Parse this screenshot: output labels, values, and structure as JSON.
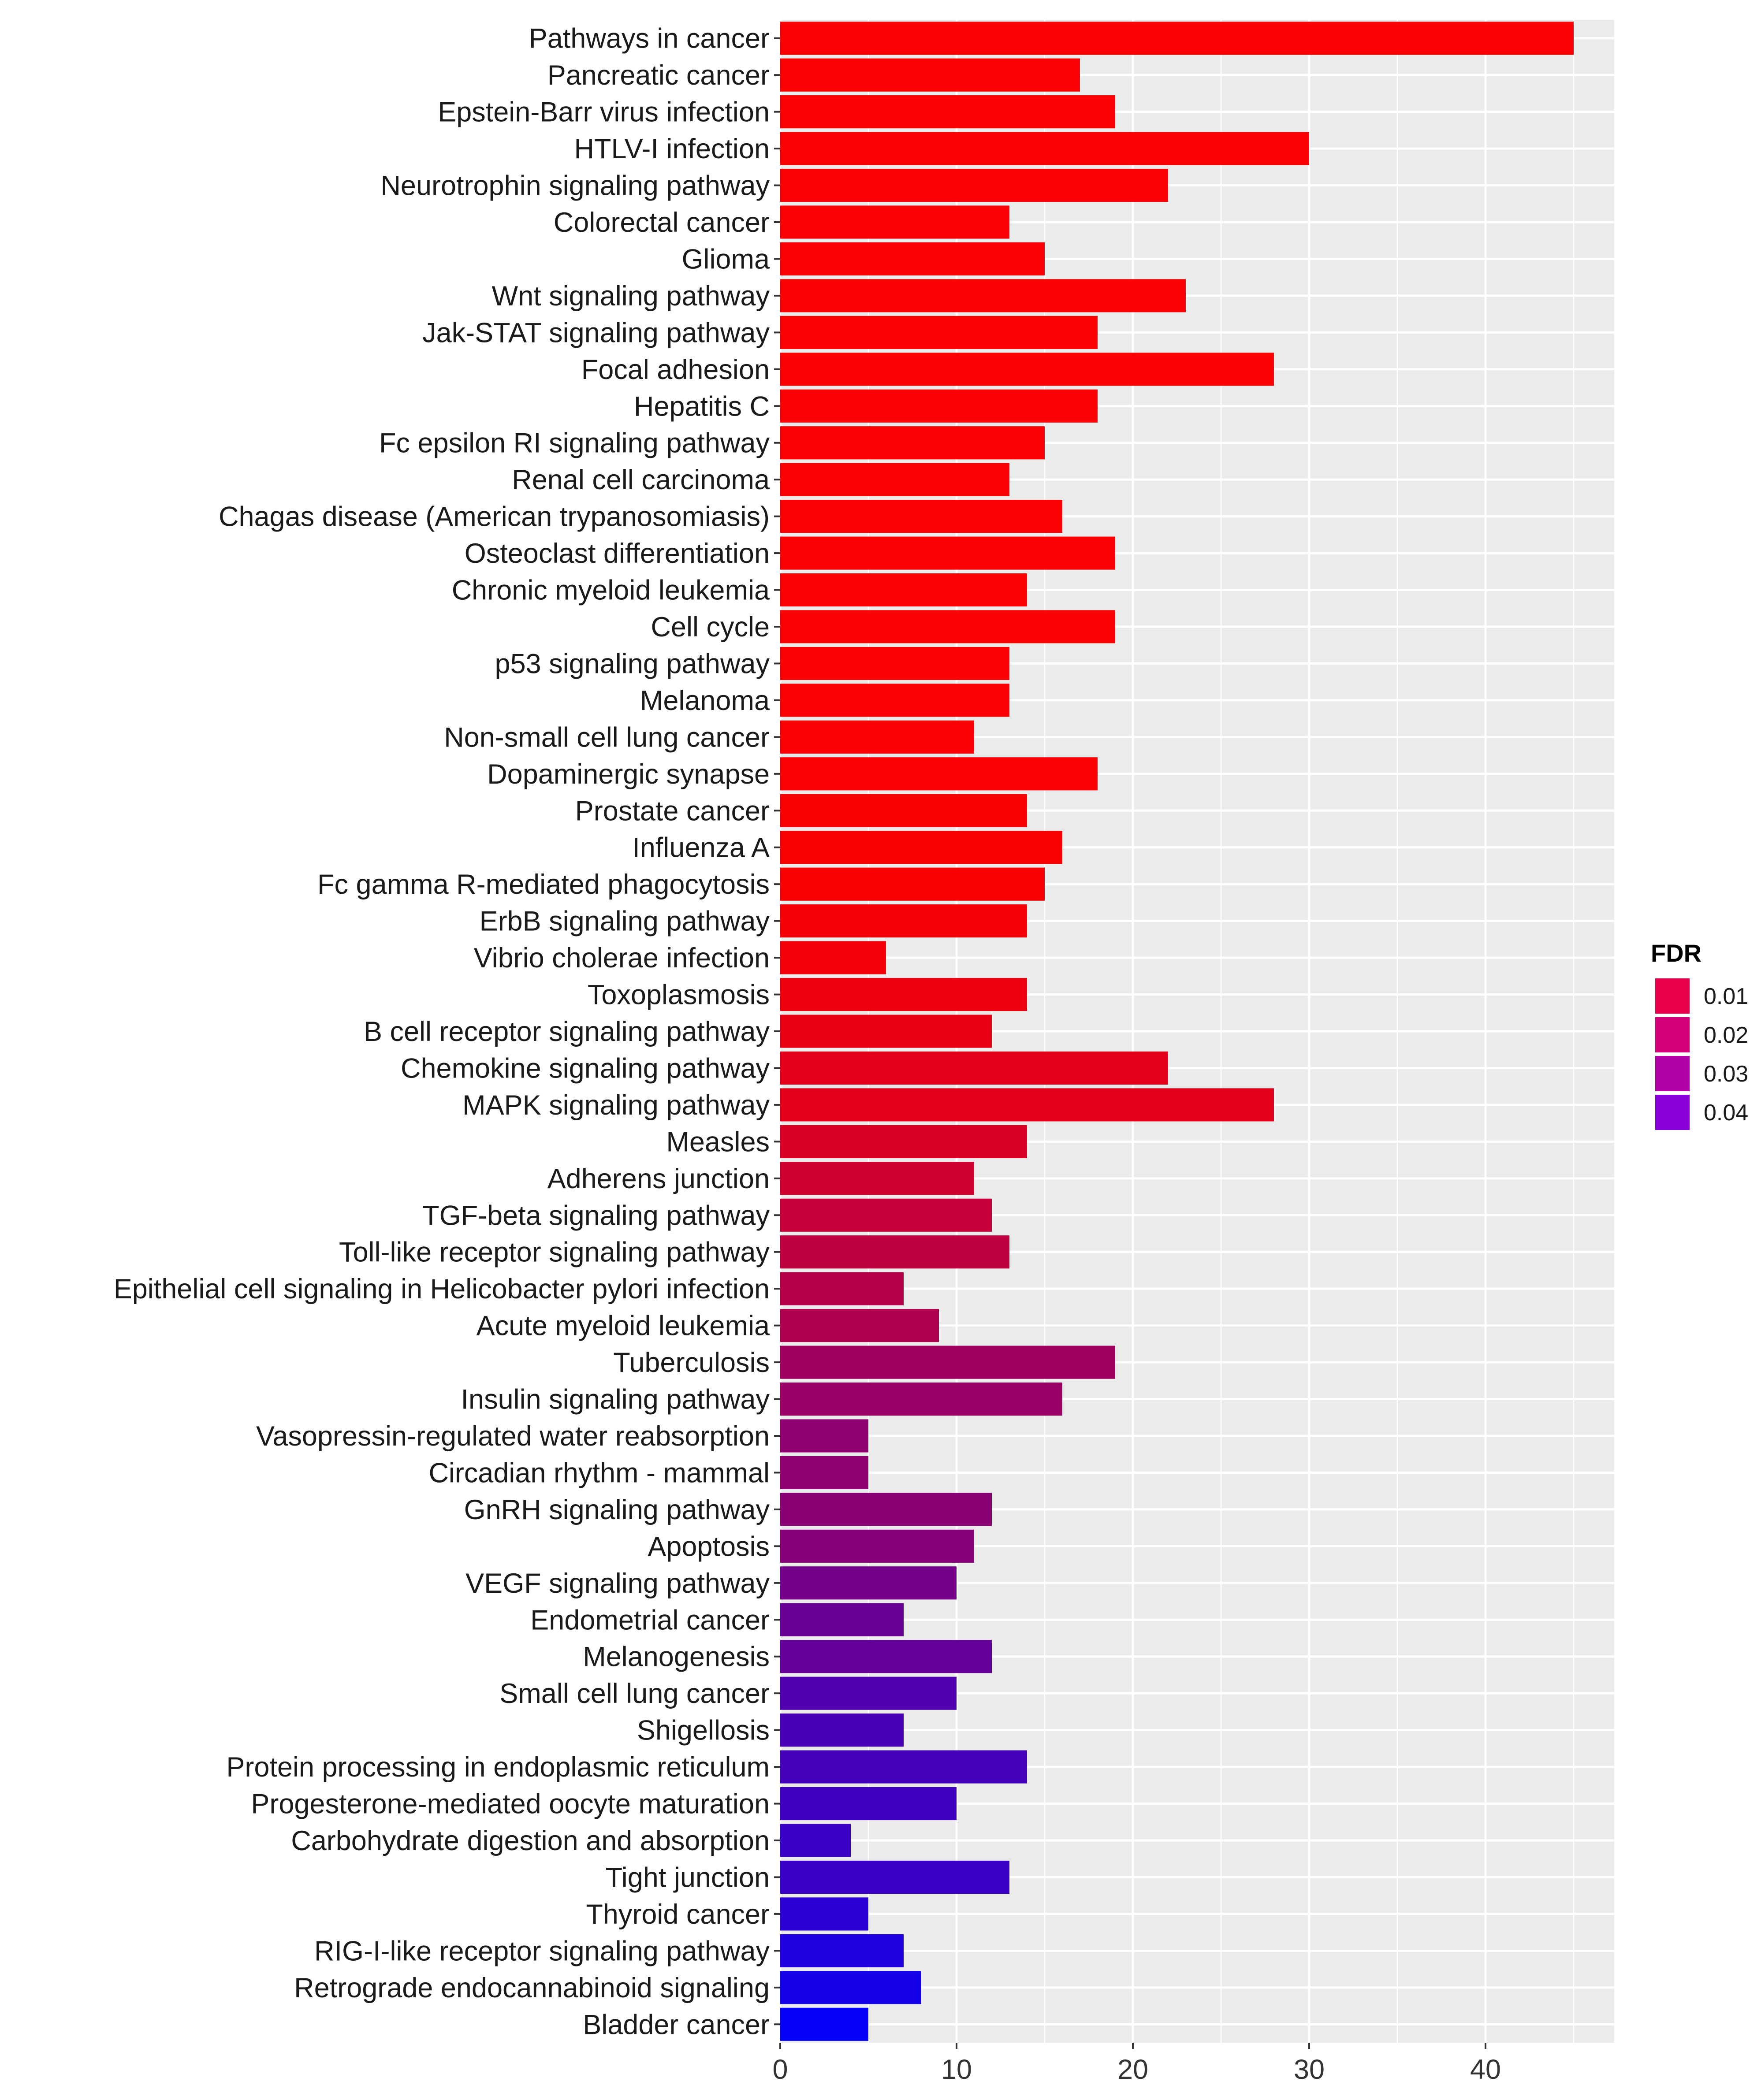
{
  "chart_data": {
    "type": "bar",
    "orientation": "horizontal",
    "title": "",
    "xlabel": "",
    "ylabel": "",
    "xlim": [
      0,
      47.3
    ],
    "x_ticks": [
      0,
      10,
      20,
      30,
      40
    ],
    "grid": true,
    "categories": [
      "Pathways in cancer",
      "Pancreatic cancer",
      "Epstein-Barr virus infection",
      "HTLV-I infection",
      "Neurotrophin signaling pathway",
      "Colorectal cancer",
      "Glioma",
      "Wnt signaling pathway",
      "Jak-STAT signaling pathway",
      "Focal adhesion",
      "Hepatitis C",
      "Fc epsilon RI signaling pathway",
      "Renal cell carcinoma",
      "Chagas disease (American trypanosomiasis)",
      "Osteoclast differentiation",
      "Chronic myeloid leukemia",
      "Cell cycle",
      "p53 signaling pathway",
      "Melanoma",
      "Non-small cell lung cancer",
      "Dopaminergic synapse",
      "Prostate cancer",
      "Influenza A",
      "Fc gamma R-mediated phagocytosis",
      "ErbB signaling pathway",
      "Vibrio cholerae infection",
      "Toxoplasmosis",
      "B cell receptor signaling pathway",
      "Chemokine signaling pathway",
      "MAPK signaling pathway",
      "Measles",
      "Adherens junction",
      "TGF-beta signaling pathway",
      "Toll-like receptor signaling pathway",
      "Epithelial cell signaling in Helicobacter pylori infection",
      "Acute myeloid leukemia",
      "Tuberculosis",
      "Insulin signaling pathway",
      "Vasopressin-regulated water reabsorption",
      "Circadian rhythm - mammal",
      "GnRH signaling pathway",
      "Apoptosis",
      "VEGF signaling pathway",
      "Endometrial cancer",
      "Melanogenesis",
      "Small cell lung cancer",
      "Shigellosis",
      "Protein processing in endoplasmic reticulum",
      "Progesterone-mediated oocyte maturation",
      "Carbohydrate digestion and absorption",
      "Tight junction",
      "Thyroid cancer",
      "RIG-I-like receptor signaling pathway",
      "Retrograde endocannabinoid signaling",
      "Bladder cancer"
    ],
    "values": [
      45,
      17,
      19,
      30,
      22,
      13,
      15,
      23,
      18,
      28,
      18,
      15,
      13,
      16,
      19,
      14,
      19,
      13,
      13,
      11,
      18,
      14,
      16,
      15,
      14,
      6,
      14,
      12,
      22,
      28,
      14,
      11,
      12,
      13,
      7,
      9,
      19,
      16,
      5,
      5,
      12,
      11,
      10,
      7,
      12,
      10,
      7,
      14,
      10,
      4,
      13,
      5,
      7,
      8,
      5
    ],
    "fdr": [
      0.0005,
      0.0005,
      0.0005,
      0.0005,
      0.0005,
      0.0005,
      0.0005,
      0.0005,
      0.0005,
      0.0005,
      0.0005,
      0.0005,
      0.0005,
      0.0005,
      0.0005,
      0.0005,
      0.0005,
      0.0005,
      0.0005,
      0.0005,
      0.0005,
      0.001,
      0.001,
      0.001,
      0.0015,
      0.002,
      0.003,
      0.004,
      0.005,
      0.005,
      0.007,
      0.009,
      0.011,
      0.012,
      0.014,
      0.015,
      0.018,
      0.019,
      0.021,
      0.021,
      0.022,
      0.023,
      0.026,
      0.028,
      0.029,
      0.033,
      0.034,
      0.035,
      0.036,
      0.037,
      0.037,
      0.04,
      0.042,
      0.044,
      0.047
    ],
    "legend": {
      "title": "FDR",
      "position": "right",
      "entries": [
        "0.01",
        "0.02",
        "0.03",
        "0.04"
      ],
      "values": [
        0.01,
        0.02,
        0.03,
        0.04
      ],
      "colors": [
        "#E8004A",
        "#D4007A",
        "#B200A8",
        "#8A00D8"
      ]
    },
    "color_scale": {
      "low_fdr_color": "#FF0000",
      "high_fdr_color": "#0000FF",
      "fdr_range": [
        0,
        0.048
      ]
    },
    "colors": {
      "panel_background": "#EBEBEB",
      "grid_major": "#FFFFFF",
      "text": "#1A1A1A",
      "tick": "#333333"
    }
  }
}
